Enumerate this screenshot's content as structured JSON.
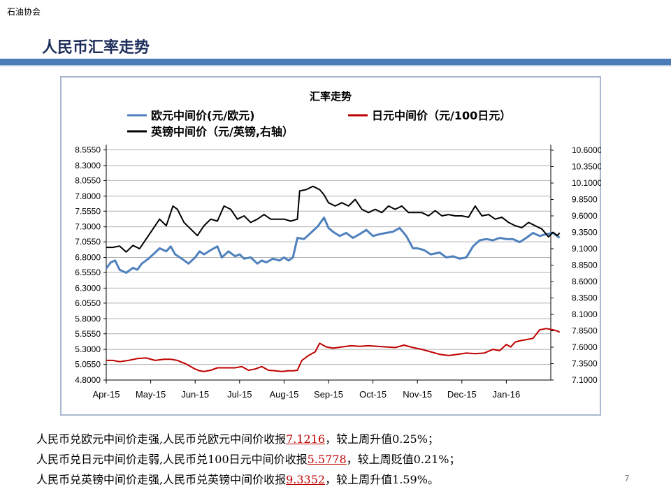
{
  "org_label": "石油协会",
  "slide_title": "人民币汇率走势",
  "page_number": "7",
  "colors": {
    "euro": "#4f81bd",
    "yen": "#c00000",
    "gbp": "#000000",
    "accent_bar": "#4a7db8",
    "highlight": "#c00000"
  },
  "chart_data": {
    "type": "line",
    "title": "汇率走势",
    "x_ticks": [
      "Apr-15",
      "May-15",
      "Jun-15",
      "Jul-15",
      "Aug-15",
      "Sep-15",
      "Oct-15",
      "Nov-15",
      "Dec-15",
      "Jan-16"
    ],
    "y_left": {
      "ylim": [
        4.8,
        8.55
      ],
      "ticks": [
        "8.5550",
        "8.3000",
        "8.0550",
        "7.8000",
        "7.5550",
        "7.3000",
        "7.0550",
        "6.8000",
        "6.5550",
        "6.3000",
        "6.0550",
        "5.8000",
        "5.5550",
        "5.3000",
        "5.0550",
        "4.8000"
      ]
    },
    "y_right": {
      "ylim": [
        7.1,
        10.6
      ],
      "ticks": [
        "10.6000",
        "10.3500",
        "10.1000",
        "9.8500",
        "9.6000",
        "9.3500",
        "9.1000",
        "8.8500",
        "8.6000",
        "8.3500",
        "8.1000",
        "7.8500",
        "7.6000",
        "7.3500",
        "7.1000"
      ]
    },
    "grid": true,
    "legend_position": "top",
    "series": [
      {
        "name": "欧元中间价(元/欧元)",
        "axis": "left",
        "color": "#4f81bd",
        "x": [
          0,
          0.1,
          0.2,
          0.3,
          0.45,
          0.6,
          0.7,
          0.8,
          0.95,
          1.1,
          1.2,
          1.35,
          1.45,
          1.55,
          1.7,
          1.85,
          2.0,
          2.1,
          2.2,
          2.35,
          2.5,
          2.6,
          2.75,
          2.9,
          3.0,
          3.1,
          3.25,
          3.4,
          3.5,
          3.6,
          3.75,
          3.9,
          4.0,
          4.1,
          4.2,
          4.3,
          4.45,
          4.6,
          4.75,
          4.9,
          5.0,
          5.1,
          5.25,
          5.4,
          5.55,
          5.7,
          5.85,
          6.0,
          6.15,
          6.3,
          6.45,
          6.6,
          6.75,
          6.9,
          7.0,
          7.15,
          7.3,
          7.5,
          7.65,
          7.8,
          7.95,
          8.1,
          8.25,
          8.4,
          8.55,
          8.7,
          8.85,
          9.0,
          9.15,
          9.3,
          9.45,
          9.6,
          9.75,
          9.9,
          10.05,
          10.2
        ],
        "values": [
          6.62,
          6.72,
          6.75,
          6.6,
          6.55,
          6.63,
          6.6,
          6.7,
          6.78,
          6.88,
          6.95,
          6.9,
          6.98,
          6.85,
          6.78,
          6.7,
          6.8,
          6.9,
          6.85,
          6.92,
          6.98,
          6.8,
          6.9,
          6.82,
          6.85,
          6.78,
          6.8,
          6.7,
          6.75,
          6.72,
          6.78,
          6.75,
          6.8,
          6.75,
          6.8,
          7.12,
          7.1,
          7.2,
          7.3,
          7.45,
          7.28,
          7.22,
          7.15,
          7.2,
          7.12,
          7.18,
          7.25,
          7.15,
          7.18,
          7.2,
          7.22,
          7.28,
          7.15,
          6.95,
          6.95,
          6.92,
          6.85,
          6.88,
          6.8,
          6.82,
          6.78,
          6.8,
          6.98,
          7.08,
          7.1,
          7.08,
          7.12,
          7.1,
          7.1,
          7.05,
          7.12,
          7.2,
          7.15,
          7.18,
          7.2,
          7.12
        ]
      },
      {
        "name": "日元中间价（元/100日元）",
        "axis": "left",
        "color": "#c00000",
        "x": [
          0,
          0.15,
          0.3,
          0.5,
          0.7,
          0.9,
          1.1,
          1.3,
          1.45,
          1.6,
          1.8,
          2.0,
          2.1,
          2.2,
          2.35,
          2.5,
          2.7,
          2.9,
          3.05,
          3.2,
          3.35,
          3.5,
          3.65,
          3.8,
          3.95,
          4.1,
          4.2,
          4.3,
          4.4,
          4.55,
          4.7,
          4.8,
          4.95,
          5.1,
          5.3,
          5.5,
          5.7,
          5.9,
          6.1,
          6.3,
          6.5,
          6.7,
          6.9,
          7.1,
          7.3,
          7.5,
          7.7,
          7.9,
          8.1,
          8.3,
          8.5,
          8.7,
          8.85,
          9.0,
          9.1,
          9.2,
          9.3,
          9.45,
          9.6,
          9.75,
          9.9,
          10.05,
          10.15,
          10.2
        ],
        "values": [
          5.12,
          5.12,
          5.1,
          5.12,
          5.15,
          5.16,
          5.12,
          5.14,
          5.14,
          5.12,
          5.06,
          4.98,
          4.95,
          4.94,
          4.96,
          5.0,
          5.0,
          5.0,
          5.02,
          4.96,
          4.98,
          5.02,
          4.96,
          4.95,
          4.94,
          4.95,
          4.95,
          4.96,
          5.12,
          5.2,
          5.26,
          5.4,
          5.34,
          5.32,
          5.34,
          5.36,
          5.35,
          5.36,
          5.35,
          5.34,
          5.33,
          5.37,
          5.33,
          5.3,
          5.26,
          5.22,
          5.2,
          5.22,
          5.24,
          5.23,
          5.24,
          5.3,
          5.28,
          5.38,
          5.34,
          5.42,
          5.44,
          5.46,
          5.48,
          5.62,
          5.64,
          5.62,
          5.6,
          5.58
        ]
      },
      {
        "name": "英镑中间价（元/英镑,右轴）",
        "axis": "right",
        "color": "#000000",
        "x": [
          0,
          0.15,
          0.3,
          0.45,
          0.6,
          0.75,
          0.9,
          1.05,
          1.2,
          1.35,
          1.5,
          1.6,
          1.75,
          1.9,
          2.05,
          2.2,
          2.35,
          2.5,
          2.65,
          2.8,
          2.95,
          3.1,
          3.25,
          3.4,
          3.55,
          3.7,
          3.85,
          4.0,
          4.15,
          4.3,
          4.35,
          4.5,
          4.65,
          4.8,
          4.9,
          5.0,
          5.15,
          5.3,
          5.45,
          5.6,
          5.75,
          5.9,
          6.05,
          6.2,
          6.35,
          6.5,
          6.65,
          6.8,
          6.95,
          7.1,
          7.25,
          7.4,
          7.55,
          7.7,
          7.85,
          8.0,
          8.15,
          8.3,
          8.45,
          8.6,
          8.75,
          8.9,
          9.05,
          9.2,
          9.35,
          9.5,
          9.65,
          9.8,
          9.95,
          10.05,
          10.15,
          10.2
        ],
        "values": [
          9.12,
          9.12,
          9.14,
          9.05,
          9.15,
          9.1,
          9.25,
          9.4,
          9.55,
          9.45,
          9.75,
          9.7,
          9.5,
          9.4,
          9.3,
          9.45,
          9.55,
          9.52,
          9.75,
          9.7,
          9.55,
          9.6,
          9.5,
          9.55,
          9.62,
          9.55,
          9.55,
          9.55,
          9.52,
          9.55,
          9.98,
          10.0,
          10.05,
          10.0,
          9.92,
          9.8,
          9.75,
          9.8,
          9.75,
          9.85,
          9.7,
          9.65,
          9.7,
          9.65,
          9.75,
          9.7,
          9.75,
          9.65,
          9.65,
          9.65,
          9.6,
          9.68,
          9.6,
          9.62,
          9.6,
          9.6,
          9.58,
          9.75,
          9.6,
          9.62,
          9.55,
          9.58,
          9.5,
          9.45,
          9.42,
          9.5,
          9.45,
          9.4,
          9.28,
          9.35,
          9.3,
          9.34
        ]
      }
    ]
  },
  "paragraphs": [
    {
      "pre": "人民币兑欧元中间价走强,人民币兑欧元中间价收报",
      "val": "7.1216",
      "post": "，较上周升值0.25%；"
    },
    {
      "pre": "人民币兑日元中间价走弱,人民币兑100日元中间价收报",
      "val": "5.5778",
      "post": "，较上周贬值0.21%；"
    },
    {
      "pre": "人民币兑英镑中间价走强,人民币兑英镑中间价收报",
      "val": "9.3352",
      "post": "，较上周升值1.59%。"
    }
  ]
}
